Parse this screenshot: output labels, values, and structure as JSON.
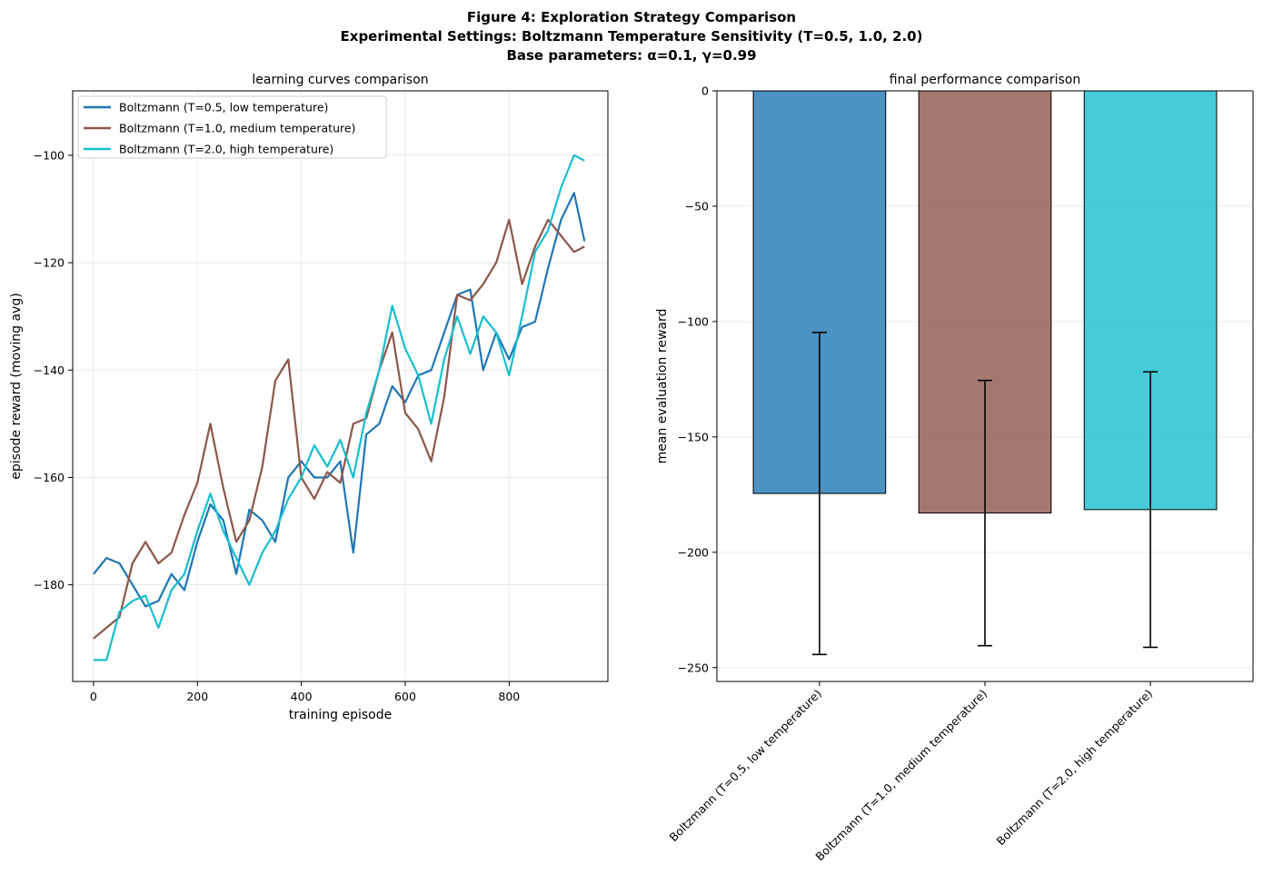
{
  "figure": {
    "title_lines": [
      "Figure 4: Exploration Strategy Comparison",
      "Experimental Settings: Boltzmann Temperature Sensitivity (T=0.5, 1.0, 2.0)",
      "Base parameters: α=0.1, γ=0.99"
    ]
  },
  "chart_data": [
    {
      "type": "line",
      "title": "learning curves comparison",
      "xlabel": "training episode",
      "ylabel": "episode reward (moving avg)",
      "xlim": [
        -40,
        990
      ],
      "ylim": [
        -198,
        -88
      ],
      "xticks": [
        0,
        200,
        400,
        600,
        800
      ],
      "yticks": [
        -180,
        -160,
        -140,
        -120,
        -100
      ],
      "grid": true,
      "legend_position": "upper-left",
      "series": [
        {
          "name": "Boltzmann (T=0.5, low temperature)",
          "color": "#1f77b4",
          "x": [
            0,
            25,
            50,
            75,
            100,
            125,
            150,
            175,
            200,
            225,
            250,
            275,
            300,
            325,
            350,
            375,
            400,
            425,
            450,
            475,
            500,
            525,
            550,
            575,
            600,
            625,
            650,
            675,
            700,
            725,
            750,
            775,
            800,
            825,
            850,
            875,
            900,
            925,
            945
          ],
          "y": [
            -178,
            -175,
            -176,
            -180,
            -184,
            -183,
            -178,
            -181,
            -172,
            -165,
            -168,
            -178,
            -166,
            -168,
            -172,
            -160,
            -157,
            -160,
            -160,
            -157,
            -174,
            -152,
            -150,
            -143,
            -146,
            -141,
            -140,
            -133,
            -126,
            -125,
            -140,
            -133,
            -138,
            -132,
            -131,
            -121,
            -112,
            -107,
            -116
          ]
        },
        {
          "name": "Boltzmann (T=1.0, medium temperature)",
          "color": "#8c564b",
          "x": [
            0,
            25,
            50,
            75,
            100,
            125,
            150,
            175,
            200,
            225,
            250,
            275,
            300,
            325,
            350,
            375,
            400,
            425,
            450,
            475,
            500,
            525,
            550,
            575,
            600,
            625,
            650,
            675,
            700,
            725,
            750,
            775,
            800,
            825,
            850,
            875,
            900,
            925,
            945
          ],
          "y": [
            -190,
            -188,
            -186,
            -176,
            -172,
            -176,
            -174,
            -167,
            -161,
            -150,
            -162,
            -172,
            -168,
            -158,
            -142,
            -138,
            -160,
            -164,
            -159,
            -161,
            -150,
            -149,
            -140,
            -133,
            -148,
            -151,
            -157,
            -145,
            -126,
            -127,
            -124,
            -120,
            -112,
            -124,
            -117,
            -112,
            -115,
            -118,
            -117
          ]
        },
        {
          "name": "Boltzmann (T=2.0, high temperature)",
          "color": "#17becf",
          "x": [
            0,
            25,
            50,
            75,
            100,
            125,
            150,
            175,
            200,
            225,
            250,
            275,
            300,
            325,
            350,
            375,
            400,
            425,
            450,
            475,
            500,
            525,
            550,
            575,
            600,
            625,
            650,
            675,
            700,
            725,
            750,
            775,
            800,
            825,
            850,
            875,
            900,
            925,
            945
          ],
          "y": [
            -194,
            -194,
            -185,
            -183,
            -182,
            -188,
            -181,
            -178,
            -170,
            -163,
            -170,
            -175,
            -180,
            -174,
            -170,
            -164,
            -160,
            -154,
            -158,
            -153,
            -160,
            -148,
            -140,
            -128,
            -136,
            -141,
            -150,
            -138,
            -130,
            -137,
            -130,
            -133,
            -141,
            -130,
            -118,
            -114,
            -106,
            -100,
            -101
          ]
        }
      ]
    },
    {
      "type": "bar",
      "title": "final performance comparison",
      "xlabel": "",
      "ylabel": "mean evaluation reward",
      "categories": [
        "Boltzmann (T=0.5, low temperature)",
        "Boltzmann (T=1.0, medium temperature)",
        "Boltzmann (T=2.0, high temperature)"
      ],
      "values": [
        -174.5,
        -183.0,
        -181.5
      ],
      "error": [
        69.8,
        57.5,
        59.7
      ],
      "colors": [
        "#1f77b4",
        "#8c564b",
        "#17becf"
      ],
      "ylim": [
        -256,
        0
      ],
      "yticks": [
        0,
        -50,
        -100,
        -150,
        -200,
        -250
      ],
      "grid": true
    }
  ]
}
